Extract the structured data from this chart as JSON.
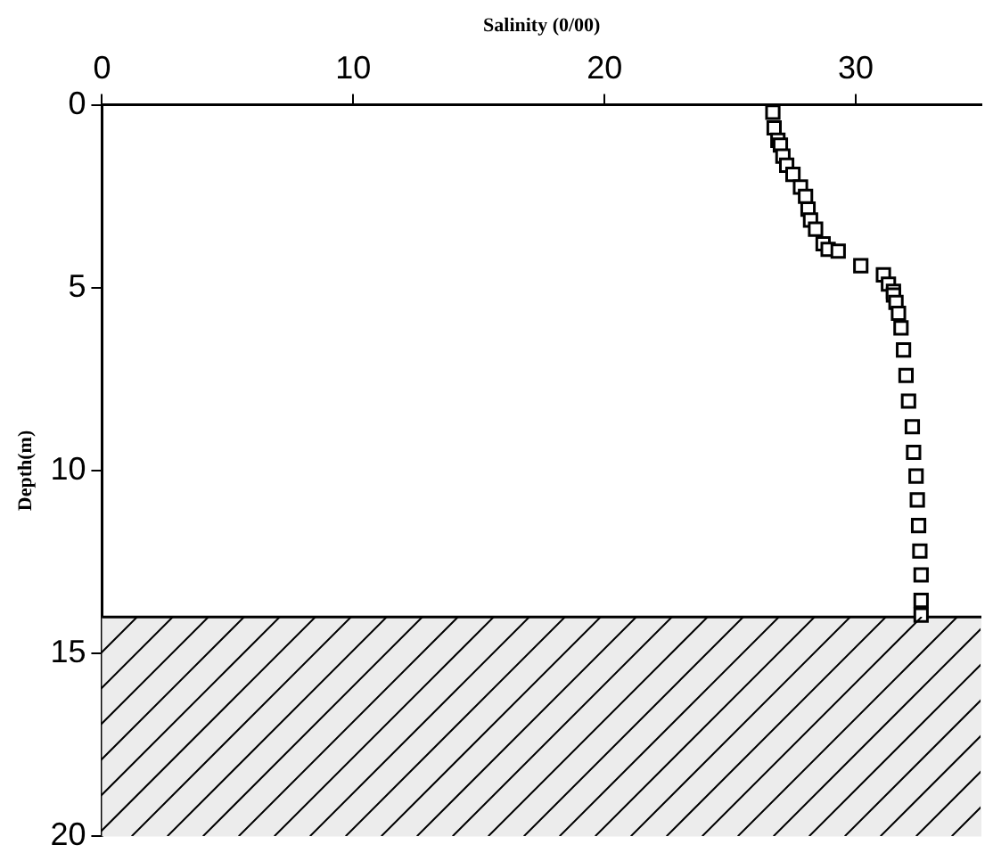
{
  "chart_data": {
    "type": "scatter",
    "xlabel": "Salinity (0/00)",
    "ylabel": "Depth(m)",
    "x": [
      26.7,
      26.75,
      26.9,
      27.0,
      27.1,
      27.25,
      27.5,
      27.8,
      28.0,
      28.1,
      28.2,
      28.4,
      28.7,
      28.9,
      29.3,
      30.2,
      31.1,
      31.3,
      31.5,
      31.5,
      31.6,
      31.7,
      31.8,
      31.9,
      32.0,
      32.1,
      32.25,
      32.3,
      32.4,
      32.45,
      32.5,
      32.55,
      32.6,
      32.6,
      32.6
    ],
    "values": [
      0.2,
      0.63,
      0.97,
      1.1,
      1.4,
      1.65,
      1.9,
      2.25,
      2.5,
      2.85,
      3.15,
      3.4,
      3.8,
      3.95,
      4.0,
      4.4,
      4.65,
      4.9,
      5.1,
      5.2,
      5.4,
      5.7,
      6.1,
      6.7,
      7.4,
      8.1,
      8.8,
      9.5,
      10.15,
      10.8,
      11.5,
      12.2,
      12.85,
      13.55,
      13.95
    ],
    "color": "#000000",
    "marker": "square",
    "grid": false,
    "xlim": [
      0,
      35
    ],
    "xticks": [
      0,
      10,
      20,
      30
    ],
    "ylim": [
      20,
      0
    ],
    "yticks": [
      0,
      5,
      10,
      15,
      20
    ],
    "ref_lines": [
      {
        "axis": "y",
        "value": 14,
        "color": "#000000"
      }
    ],
    "bands": [
      {
        "axis": "y",
        "from": 14,
        "to": 20,
        "color": "#ececec"
      }
    ]
  }
}
